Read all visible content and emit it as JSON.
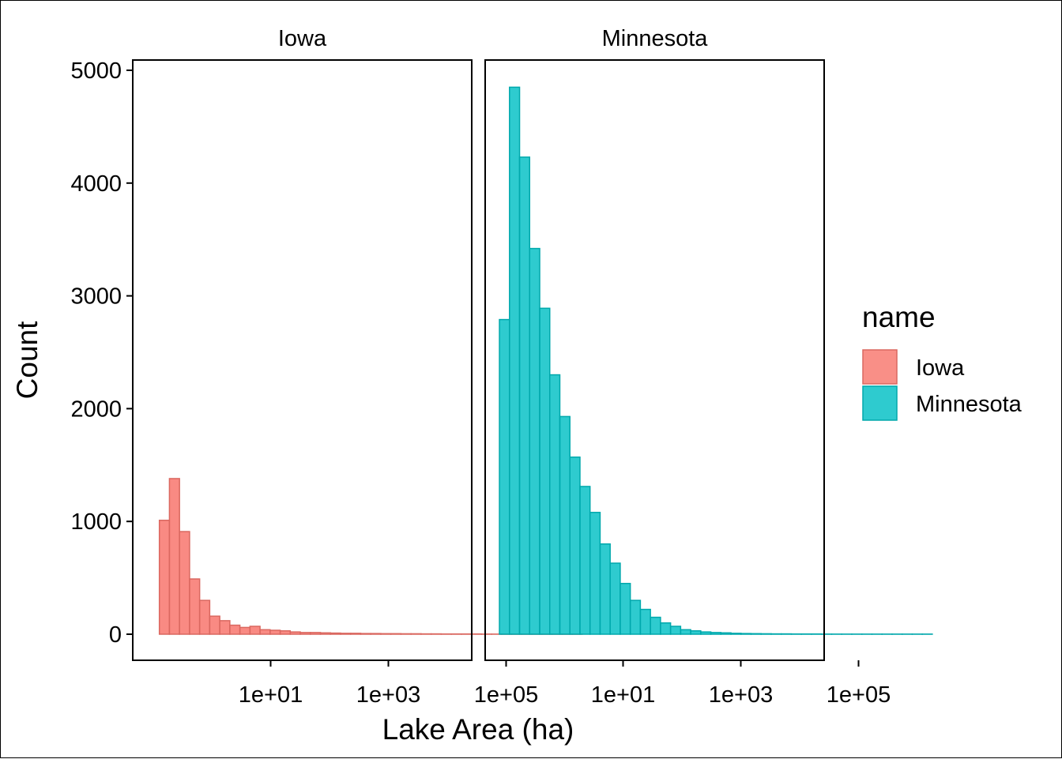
{
  "chart_data": {
    "type": "bar",
    "subtype": "faceted-histogram",
    "xlabel": "Lake Area (ha)",
    "ylabel": "Count",
    "x_scale": "log10",
    "x_tick_labels": [
      "1e+01",
      "1e+03",
      "1e+05"
    ],
    "x_tick_values": [
      10,
      1000,
      100000
    ],
    "ylim": [
      0,
      5000
    ],
    "y_ticks": [
      0,
      1000,
      2000,
      3000,
      4000,
      5000
    ],
    "grid": false,
    "legend": {
      "title": "name",
      "placement": "right",
      "entries": [
        {
          "label": "Iowa",
          "fill": "#F8766D"
        },
        {
          "label": "Minnesota",
          "fill": "#00BFC4"
        }
      ]
    },
    "facets": [
      {
        "strip": "Iowa",
        "fill": "#F8766D",
        "bin_width_log10": 0.171,
        "bin_start_log10": -0.89,
        "values": [
          1010,
          1380,
          910,
          490,
          300,
          160,
          120,
          80,
          60,
          70,
          40,
          35,
          30,
          20,
          15,
          15,
          12,
          10,
          8,
          8,
          6,
          6,
          5,
          5,
          4,
          4,
          3,
          3,
          2,
          2,
          2,
          2,
          1,
          1,
          1,
          1,
          1,
          1,
          1,
          1,
          1,
          1
        ]
      },
      {
        "strip": "Minnesota",
        "fill": "#00BFC4",
        "bin_width_log10": 0.171,
        "bin_start_log10": -1.1,
        "values": [
          2790,
          4850,
          4230,
          3420,
          2890,
          2300,
          1930,
          1570,
          1310,
          1080,
          800,
          630,
          450,
          300,
          220,
          150,
          100,
          70,
          40,
          30,
          20,
          15,
          12,
          8,
          6,
          5,
          4,
          3,
          3,
          2,
          2,
          2,
          1,
          1,
          1,
          1,
          1,
          1,
          1,
          1,
          1,
          1,
          1
        ]
      }
    ]
  }
}
